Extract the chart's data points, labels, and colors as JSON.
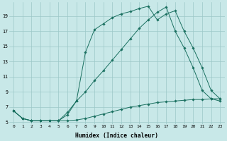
{
  "xlabel": "Humidex (Indice chaleur)",
  "background_color": "#c8e8e8",
  "grid_color": "#9cc8c8",
  "line_color": "#1a7060",
  "xlim": [
    -0.5,
    23.5
  ],
  "ylim": [
    4.8,
    20.8
  ],
  "yticks": [
    5,
    7,
    9,
    11,
    13,
    15,
    17,
    19
  ],
  "xticks": [
    0,
    1,
    2,
    3,
    4,
    5,
    6,
    7,
    8,
    9,
    10,
    11,
    12,
    13,
    14,
    15,
    16,
    17,
    18,
    19,
    20,
    21,
    22,
    23
  ],
  "line1_x": [
    0,
    1,
    2,
    3,
    4,
    5,
    6,
    7,
    8,
    9,
    10,
    11,
    12,
    13,
    14,
    15,
    16,
    17,
    18,
    19,
    20,
    21,
    22,
    23
  ],
  "line1_y": [
    6.5,
    5.5,
    5.2,
    5.2,
    5.2,
    5.2,
    5.2,
    5.3,
    5.5,
    5.8,
    6.1,
    6.4,
    6.7,
    7.0,
    7.2,
    7.4,
    7.6,
    7.7,
    7.8,
    7.9,
    8.0,
    8.0,
    8.1,
    8.1
  ],
  "line2_x": [
    0,
    1,
    2,
    3,
    4,
    5,
    6,
    7,
    8,
    9,
    10,
    11,
    12,
    13,
    14,
    15,
    16,
    17,
    18,
    19,
    20,
    21,
    22,
    23
  ],
  "line2_y": [
    6.5,
    5.5,
    5.2,
    5.2,
    5.2,
    5.2,
    6.3,
    7.8,
    14.2,
    17.2,
    18.0,
    18.8,
    19.3,
    19.6,
    20.0,
    20.3,
    18.5,
    19.3,
    19.7,
    17.0,
    14.8,
    12.2,
    9.2,
    8.1
  ],
  "line3_x": [
    0,
    1,
    2,
    3,
    4,
    5,
    6,
    7,
    8,
    9,
    10,
    11,
    12,
    13,
    14,
    15,
    16,
    17,
    18,
    19,
    20,
    21,
    22,
    23
  ],
  "line3_y": [
    6.5,
    5.5,
    5.2,
    5.2,
    5.2,
    5.2,
    6.0,
    7.8,
    9.0,
    10.5,
    11.8,
    13.2,
    14.6,
    16.0,
    17.4,
    18.5,
    19.5,
    20.2,
    17.0,
    14.8,
    12.2,
    9.2,
    8.1,
    7.8
  ]
}
